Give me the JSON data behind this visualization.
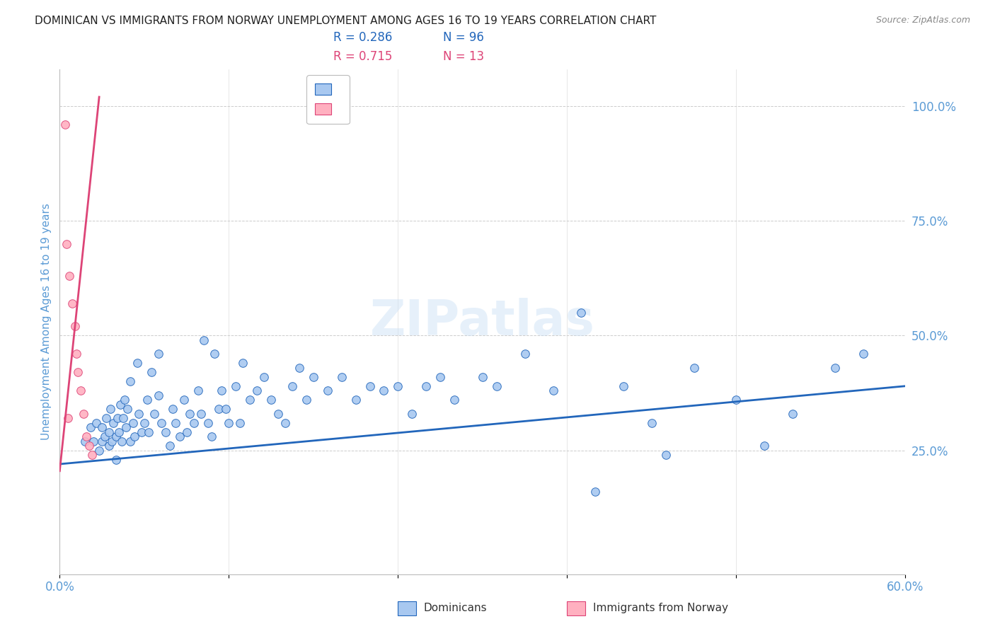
{
  "title": "DOMINICAN VS IMMIGRANTS FROM NORWAY UNEMPLOYMENT AMONG AGES 16 TO 19 YEARS CORRELATION CHART",
  "source": "Source: ZipAtlas.com",
  "ylabel": "Unemployment Among Ages 16 to 19 years",
  "right_yticks": [
    "100.0%",
    "75.0%",
    "50.0%",
    "25.0%"
  ],
  "right_ytick_vals": [
    1.0,
    0.75,
    0.5,
    0.25
  ],
  "xlim": [
    0.0,
    0.6
  ],
  "ylim": [
    -0.02,
    1.08
  ],
  "watermark": "ZIPatlas",
  "legend_r1": "R = 0.286",
  "legend_n1": "N = 96",
  "legend_r2": "R = 0.715",
  "legend_n2": "N = 13",
  "blue_color": "#a8c8f0",
  "blue_line_color": "#2266bb",
  "pink_color": "#ffb0c0",
  "pink_line_color": "#dd4477",
  "title_color": "#222222",
  "axis_label_color": "#5b9bd5",
  "right_tick_color": "#5b9bd5",
  "dominicans_x": [
    0.018,
    0.022,
    0.024,
    0.026,
    0.028,
    0.03,
    0.03,
    0.032,
    0.033,
    0.035,
    0.035,
    0.036,
    0.037,
    0.038,
    0.04,
    0.04,
    0.041,
    0.042,
    0.043,
    0.044,
    0.045,
    0.046,
    0.047,
    0.048,
    0.05,
    0.05,
    0.052,
    0.053,
    0.055,
    0.056,
    0.058,
    0.06,
    0.062,
    0.063,
    0.065,
    0.067,
    0.07,
    0.07,
    0.072,
    0.075,
    0.078,
    0.08,
    0.082,
    0.085,
    0.088,
    0.09,
    0.092,
    0.095,
    0.098,
    0.1,
    0.102,
    0.105,
    0.108,
    0.11,
    0.113,
    0.115,
    0.118,
    0.12,
    0.125,
    0.128,
    0.13,
    0.135,
    0.14,
    0.145,
    0.15,
    0.155,
    0.16,
    0.165,
    0.17,
    0.175,
    0.18,
    0.19,
    0.2,
    0.21,
    0.22,
    0.23,
    0.24,
    0.25,
    0.26,
    0.27,
    0.28,
    0.3,
    0.31,
    0.33,
    0.35,
    0.37,
    0.4,
    0.42,
    0.45,
    0.48,
    0.52,
    0.55,
    0.57,
    0.38,
    0.43,
    0.5
  ],
  "dominicans_y": [
    0.27,
    0.3,
    0.27,
    0.31,
    0.25,
    0.3,
    0.27,
    0.28,
    0.32,
    0.29,
    0.26,
    0.34,
    0.27,
    0.31,
    0.23,
    0.28,
    0.32,
    0.29,
    0.35,
    0.27,
    0.32,
    0.36,
    0.3,
    0.34,
    0.27,
    0.4,
    0.31,
    0.28,
    0.44,
    0.33,
    0.29,
    0.31,
    0.36,
    0.29,
    0.42,
    0.33,
    0.37,
    0.46,
    0.31,
    0.29,
    0.26,
    0.34,
    0.31,
    0.28,
    0.36,
    0.29,
    0.33,
    0.31,
    0.38,
    0.33,
    0.49,
    0.31,
    0.28,
    0.46,
    0.34,
    0.38,
    0.34,
    0.31,
    0.39,
    0.31,
    0.44,
    0.36,
    0.38,
    0.41,
    0.36,
    0.33,
    0.31,
    0.39,
    0.43,
    0.36,
    0.41,
    0.38,
    0.41,
    0.36,
    0.39,
    0.38,
    0.39,
    0.33,
    0.39,
    0.41,
    0.36,
    0.41,
    0.39,
    0.46,
    0.38,
    0.55,
    0.39,
    0.31,
    0.43,
    0.36,
    0.33,
    0.43,
    0.46,
    0.16,
    0.24,
    0.26
  ],
  "norway_x": [
    0.004,
    0.005,
    0.007,
    0.009,
    0.011,
    0.012,
    0.013,
    0.015,
    0.017,
    0.019,
    0.021,
    0.023,
    0.006
  ],
  "norway_y": [
    0.96,
    0.7,
    0.63,
    0.57,
    0.52,
    0.46,
    0.42,
    0.38,
    0.33,
    0.28,
    0.26,
    0.24,
    0.32
  ],
  "blue_trendline_x": [
    0.0,
    0.6
  ],
  "blue_trendline_y": [
    0.22,
    0.39
  ],
  "pink_trendline_x": [
    0.0,
    0.028
  ],
  "pink_trendline_y": [
    0.205,
    1.02
  ]
}
